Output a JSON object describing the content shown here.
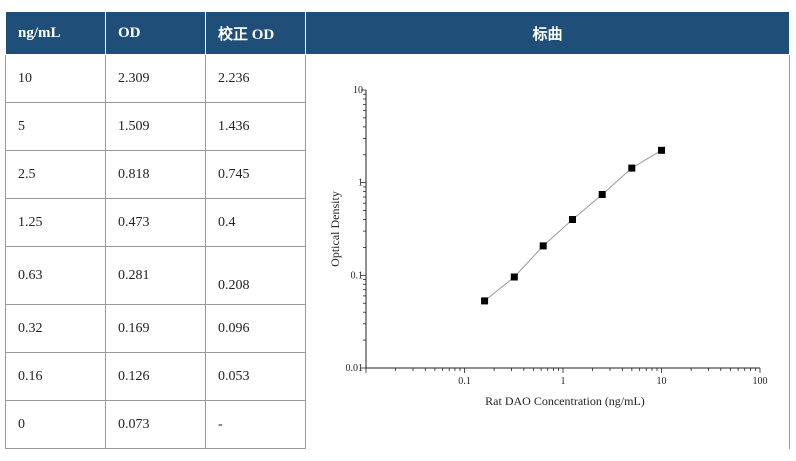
{
  "headers": {
    "concentration": "ng/mL",
    "od": "OD",
    "corrected_od": "校正 OD",
    "curve": "标曲"
  },
  "rows": [
    {
      "conc": "10",
      "od": "2.309",
      "corr": "2.236"
    },
    {
      "conc": "5",
      "od": "1.509",
      "corr": "1.436"
    },
    {
      "conc": "2.5",
      "od": "0.818",
      "corr": "0.745"
    },
    {
      "conc": "1.25",
      "od": "0.473",
      "corr": "0.4"
    },
    {
      "conc": "0.63",
      "od": "0.281",
      "corr": "0.208"
    },
    {
      "conc": "0.32",
      "od": "0.169",
      "corr": "0.096"
    },
    {
      "conc": "0.16",
      "od": "0.126",
      "corr": "0.053"
    },
    {
      "conc": "0",
      "od": "0.073",
      "corr": "-"
    }
  ],
  "colors": {
    "header_bg": "#1f4e79",
    "header_text": "#ffffff",
    "grid_line": "#9a9a9a",
    "marker": "#000000",
    "curve_line": "#999999"
  },
  "chart_data": {
    "type": "scatter",
    "xlabel": "Rat DAO Concentration (ng/mL)",
    "ylabel": "Optical Density",
    "xscale": "log",
    "yscale": "log",
    "xlim": [
      0.01,
      100
    ],
    "ylim": [
      0.01,
      10
    ],
    "xticks": [
      "0.1",
      "1",
      "10",
      "100"
    ],
    "yticks": [
      "0.01",
      "0.1",
      "1",
      "10"
    ],
    "grid": false,
    "fit_line": true,
    "x": [
      0.16,
      0.32,
      0.63,
      1.25,
      2.5,
      5,
      10
    ],
    "y": [
      0.053,
      0.096,
      0.208,
      0.4,
      0.745,
      1.436,
      2.236
    ]
  }
}
